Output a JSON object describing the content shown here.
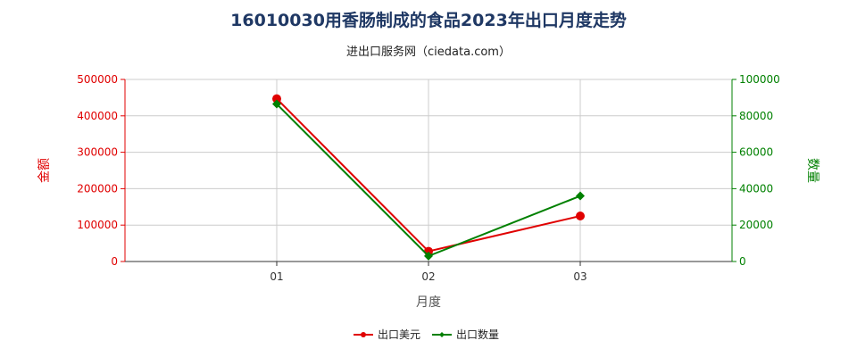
{
  "colors": {
    "left": "#e00000",
    "right": "#008000",
    "grid": "#cccccc",
    "axis": "#333333"
  },
  "chart_data": {
    "type": "line",
    "title": "16010030用香肠制成的食品2023年出口月度走势",
    "subtitle": "进出口服务网（ciedata.com）",
    "xlabel": "月度",
    "ylabel_left": "金额",
    "ylabel_right": "数量",
    "categories": [
      "01",
      "02",
      "03"
    ],
    "ylim_left": [
      0,
      500000
    ],
    "ylim_right": [
      0,
      100000
    ],
    "left_ticks": [
      "0",
      "100000",
      "200000",
      "300000",
      "400000",
      "500000"
    ],
    "right_ticks": [
      "0",
      "20000",
      "40000",
      "60000",
      "80000",
      "100000"
    ],
    "grid": true,
    "legend_position": "bottom-center",
    "series": [
      {
        "name": "出口美元",
        "axis": "left",
        "color": "#e00000",
        "marker": "circle",
        "values": [
          447000,
          28000,
          125000
        ]
      },
      {
        "name": "出口数量",
        "axis": "right",
        "color": "#008000",
        "marker": "diamond",
        "values": [
          86500,
          3000,
          36000
        ]
      }
    ]
  }
}
